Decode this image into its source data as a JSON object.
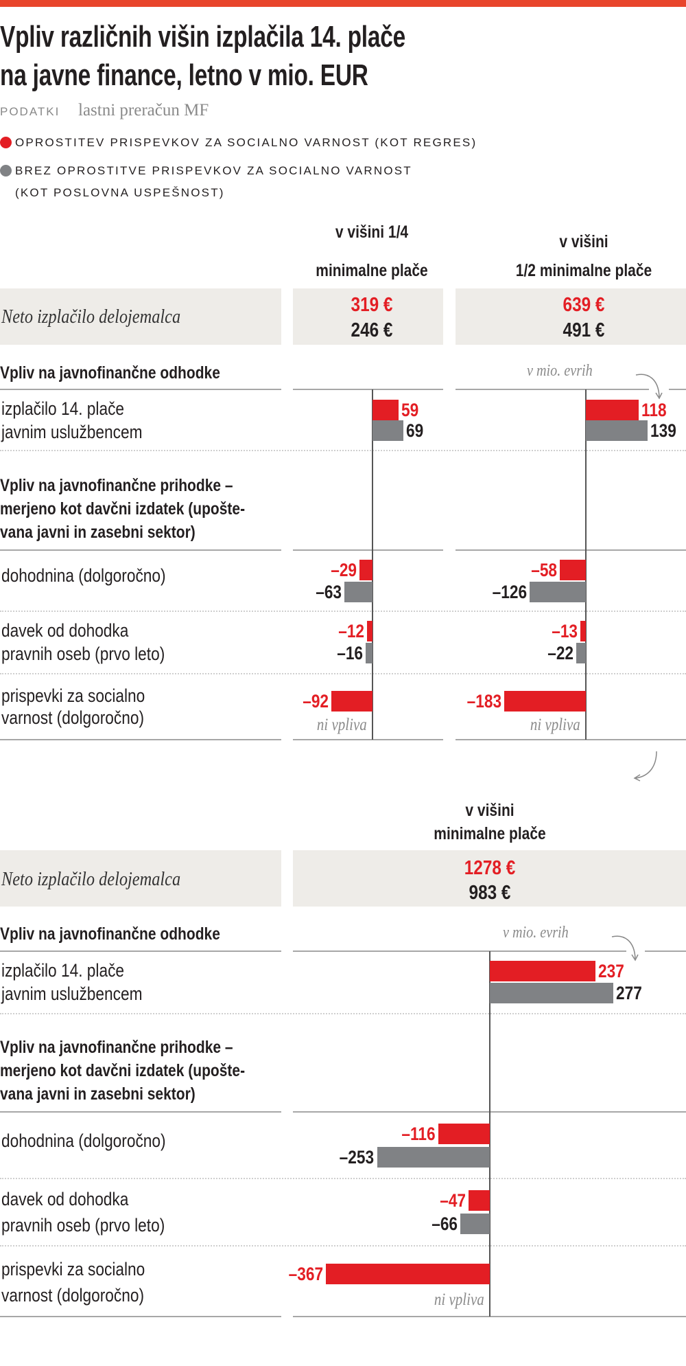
{
  "title_lines": [
    "Vpliv različnih višin izplačila 14. plače",
    "na javne finance, letno v mio. EUR"
  ],
  "source": {
    "label": "PODATKI",
    "text": "lastni preračun MF"
  },
  "colors": {
    "top_bar": "#e8452c",
    "red": "#e31e24",
    "grey": "#808285",
    "panel_bg": "#eeece8"
  },
  "legend": [
    {
      "color": "#e31e24",
      "lines": [
        "OPROSTITEV PRISPEVKOV ZA SOCIALNO VARNOST (KOT REGRES)"
      ]
    },
    {
      "color": "#808285",
      "lines": [
        "BREZ OPROSTITVE PRISPEVKOV ZA SOCIALNO VARNOST",
        "(KOT POSLOVNA USPEŠNOST)"
      ]
    }
  ],
  "labels": {
    "neto": "Neto izplačilo delojemalca",
    "expenditure_header": "Vpliv na javnofinančne odhodke",
    "unit_note": "v mio. evrih",
    "row_payout": [
      "izplačilo 14. plače",
      "javnim uslužbencem"
    ],
    "revenue_header": [
      "Vpliv na javnofinančne prihodke –",
      "merjeno kot davčni izdatek (upošte-",
      "vana javni in zasebni sektor)"
    ],
    "row_income_tax": [
      "dohodnina (dolgoročno)"
    ],
    "row_corporate_tax": [
      "davek od dohodka",
      "pravnih oseb (prvo leto)"
    ],
    "row_social": [
      "prispevki za socialno",
      "varnost (dolgoročno)"
    ],
    "no_effect": "ni vpliva"
  },
  "chart_data": [
    {
      "type": "bar",
      "title_lines": [
        "v višini 1/4",
        "minimalne plače"
      ],
      "net_payout": {
        "red": "319 €",
        "grey": "246 €"
      },
      "categories": [
        "izplačilo 14. plače javnim uslužbencem",
        "dohodnina (dolgoročno)",
        "davek od dohodka pravnih oseb (prvo leto)",
        "prispevki za socialno varnost (dolgoročno)"
      ],
      "series": [
        {
          "name": "OPROSTITEV PRISPEVKOV ZA SOCIALNO VARNOST (KOT REGRES)",
          "color": "#e31e24",
          "values": [
            59,
            -29,
            -12,
            -92
          ]
        },
        {
          "name": "BREZ OPROSTITVE PRISPEVKOV ZA SOCIALNO VARNOST (KOT POSLOVNA USPEŠNOST)",
          "color": "#808285",
          "values": [
            69,
            -63,
            -16,
            null
          ]
        }
      ]
    },
    {
      "type": "bar",
      "title_lines": [
        "v višini",
        "1/2 minimalne plače"
      ],
      "net_payout": {
        "red": "639 €",
        "grey": "491 €"
      },
      "categories": [
        "izplačilo 14. plače javnim uslužbencem",
        "dohodnina (dolgoročno)",
        "davek od dohodka pravnih oseb (prvo leto)",
        "prispevki za socialno varnost (dolgoročno)"
      ],
      "series": [
        {
          "name": "OPROSTITEV PRISPEVKOV ZA SOCIALNO VARNOST (KOT REGRES)",
          "color": "#e31e24",
          "values": [
            118,
            -58,
            -13,
            -183
          ]
        },
        {
          "name": "BREZ OPROSTITVE PRISPEVKOV ZA SOCIALNO VARNOST (KOT POSLOVNA USPEŠNOST)",
          "color": "#808285",
          "values": [
            139,
            -126,
            -22,
            null
          ]
        }
      ]
    },
    {
      "type": "bar",
      "title_lines": [
        "v višini",
        "minimalne plače"
      ],
      "net_payout": {
        "red": "1278 €",
        "grey": "983 €"
      },
      "categories": [
        "izplačilo 14. plače javnim uslužbencem",
        "dohodnina (dolgoročno)",
        "davek od dohodka pravnih oseb (prvo leto)",
        "prispevki za socialno varnost (dolgoročno)"
      ],
      "series": [
        {
          "name": "OPROSTITEV PRISPEVKOV ZA SOCIALNO VARNOST (KOT REGRES)",
          "color": "#e31e24",
          "values": [
            237,
            -116,
            -47,
            -367
          ]
        },
        {
          "name": "BREZ OPROSTITVE PRISPEVKOV ZA SOCIALNO VARNOST (KOT POSLOVNA USPEŠNOST)",
          "color": "#808285",
          "values": [
            277,
            -253,
            -66,
            null
          ]
        }
      ]
    }
  ]
}
